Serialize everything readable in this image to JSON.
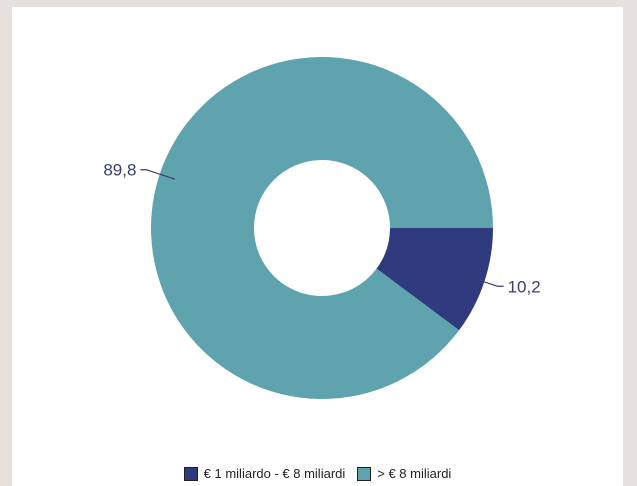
{
  "chart_data": {
    "type": "pie",
    "variant": "donut",
    "slices": [
      {
        "label": "€ 1 miliardo - € 8 miliardi",
        "value": 10.2,
        "display": "10,2",
        "color": "#2f3b7e"
      },
      {
        "label": "> € 8 miliardi",
        "value": 89.8,
        "display": "89,8",
        "color": "#5fa3ae"
      }
    ],
    "legend_position": "bottom"
  }
}
